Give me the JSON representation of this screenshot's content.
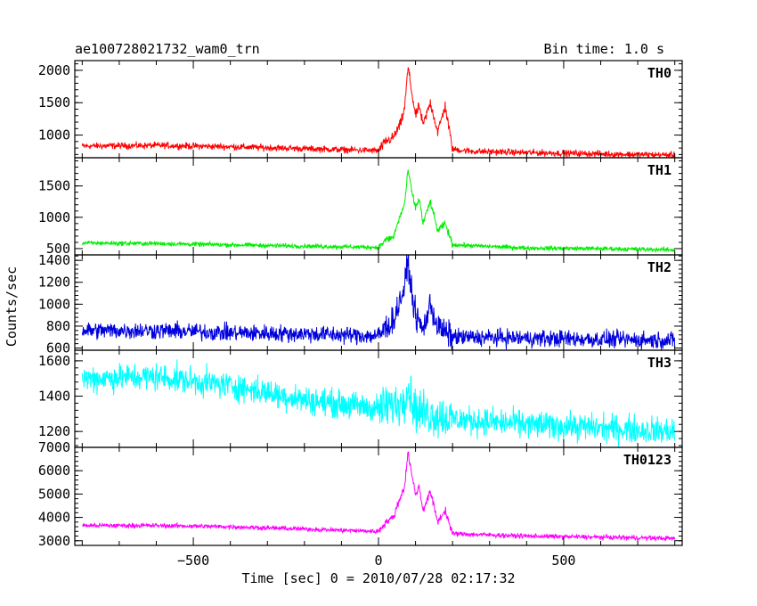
{
  "chart_data": {
    "type": "line",
    "title": "ae100728021732_wam0_trn",
    "annotation": "Bin time: 1.0 s",
    "xlabel": "Time [sec] 0 = 2010/07/28 02:17:32",
    "ylabel": "Counts/sec",
    "xlim": [
      -820,
      820
    ],
    "x_ticks": [
      "−500",
      "0",
      "500"
    ],
    "x_tick_values": [
      -500,
      0,
      500
    ],
    "grid": false,
    "legend": "none",
    "bin_time_s": 1.0,
    "panels": [
      {
        "name": "TH0",
        "color": "#ff0000",
        "ylim": [
          650,
          2150
        ],
        "y_ticks": [
          1000,
          1500,
          2000
        ],
        "y_tick_labels": [
          "1000",
          "1500",
          "2000"
        ],
        "noise": 35,
        "profile": [
          [
            -800,
            830
          ],
          [
            -600,
            840
          ],
          [
            -400,
            820
          ],
          [
            -200,
            790
          ],
          [
            0,
            760
          ],
          [
            20,
            900
          ],
          [
            40,
            960
          ],
          [
            60,
            1180
          ],
          [
            70,
            1400
          ],
          [
            80,
            2050
          ],
          [
            90,
            1650
          ],
          [
            100,
            1300
          ],
          [
            110,
            1450
          ],
          [
            120,
            1150
          ],
          [
            140,
            1500
          ],
          [
            160,
            1050
          ],
          [
            180,
            1450
          ],
          [
            200,
            780
          ],
          [
            250,
            750
          ],
          [
            400,
            730
          ],
          [
            600,
            710
          ],
          [
            800,
            690
          ]
        ]
      },
      {
        "name": "TH1",
        "color": "#00ee00",
        "ylim": [
          400,
          1950
        ],
        "y_ticks": [
          500,
          1000,
          1500
        ],
        "y_tick_labels": [
          "500",
          "1000",
          "1500"
        ],
        "noise": 25,
        "profile": [
          [
            -800,
            590
          ],
          [
            -600,
            580
          ],
          [
            -400,
            560
          ],
          [
            -200,
            540
          ],
          [
            0,
            520
          ],
          [
            20,
            640
          ],
          [
            40,
            680
          ],
          [
            60,
            1050
          ],
          [
            70,
            1200
          ],
          [
            80,
            1750
          ],
          [
            90,
            1400
          ],
          [
            100,
            1150
          ],
          [
            110,
            1300
          ],
          [
            120,
            900
          ],
          [
            140,
            1250
          ],
          [
            160,
            780
          ],
          [
            180,
            900
          ],
          [
            200,
            560
          ],
          [
            400,
            510
          ],
          [
            600,
            500
          ],
          [
            800,
            480
          ]
        ]
      },
      {
        "name": "TH2",
        "color": "#0000dd",
        "ylim": [
          580,
          1450
        ],
        "y_ticks": [
          600,
          800,
          1000,
          1200,
          1400
        ],
        "y_tick_labels": [
          "600",
          "800",
          "1000",
          "1200",
          "1400"
        ],
        "noise": 55,
        "profile": [
          [
            -800,
            760
          ],
          [
            -600,
            760
          ],
          [
            -400,
            740
          ],
          [
            -200,
            730
          ],
          [
            0,
            710
          ],
          [
            20,
            790
          ],
          [
            40,
            850
          ],
          [
            60,
            1050
          ],
          [
            70,
            1150
          ],
          [
            80,
            1400
          ],
          [
            90,
            1100
          ],
          [
            100,
            900
          ],
          [
            120,
            760
          ],
          [
            140,
            1000
          ],
          [
            160,
            790
          ],
          [
            200,
            700
          ],
          [
            400,
            690
          ],
          [
            600,
            680
          ],
          [
            800,
            670
          ]
        ]
      },
      {
        "name": "TH3",
        "color": "#00ffff",
        "ylim": [
          1110,
          1660
        ],
        "y_ticks": [
          1200,
          1400,
          1600
        ],
        "y_tick_labels": [
          "1200",
          "1400",
          "1600"
        ],
        "noise": 55,
        "profile": [
          [
            -800,
            1500
          ],
          [
            -600,
            1510
          ],
          [
            -400,
            1460
          ],
          [
            -200,
            1380
          ],
          [
            0,
            1330
          ],
          [
            60,
            1360
          ],
          [
            80,
            1450
          ],
          [
            100,
            1320
          ],
          [
            200,
            1270
          ],
          [
            400,
            1240
          ],
          [
            600,
            1220
          ],
          [
            800,
            1200
          ]
        ]
      },
      {
        "name": "TH0123",
        "color": "#ff00ff",
        "ylim": [
          2800,
          7000
        ],
        "y_ticks": [
          3000,
          4000,
          5000,
          6000,
          7000
        ],
        "y_tick_labels": [
          "3000",
          "4000",
          "5000",
          "6000",
          "7000"
        ],
        "noise": 70,
        "profile": [
          [
            -800,
            3650
          ],
          [
            -600,
            3650
          ],
          [
            -400,
            3600
          ],
          [
            -200,
            3500
          ],
          [
            0,
            3400
          ],
          [
            20,
            3800
          ],
          [
            40,
            4000
          ],
          [
            60,
            4900
          ],
          [
            70,
            5300
          ],
          [
            80,
            6800
          ],
          [
            90,
            5800
          ],
          [
            100,
            5000
          ],
          [
            110,
            5300
          ],
          [
            120,
            4300
          ],
          [
            140,
            5100
          ],
          [
            160,
            3800
          ],
          [
            180,
            4300
          ],
          [
            200,
            3300
          ],
          [
            400,
            3200
          ],
          [
            600,
            3150
          ],
          [
            800,
            3100
          ]
        ]
      }
    ]
  }
}
